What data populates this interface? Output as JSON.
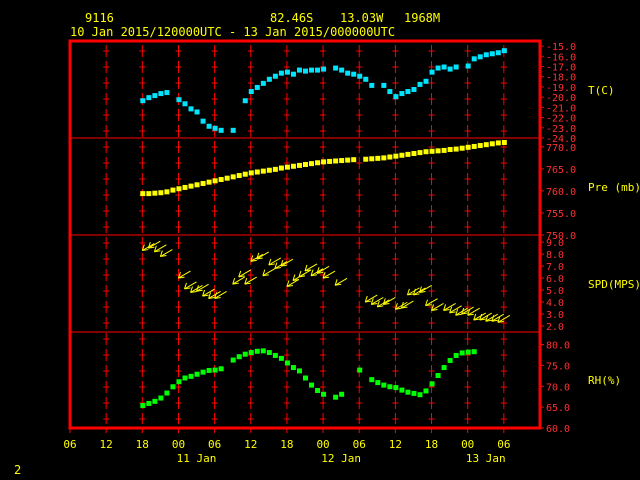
{
  "header": {
    "station": "9116",
    "latitude": "82.46S",
    "longitude": "13.03W",
    "elevation": "1968M",
    "time_range": "10 Jan 2015/120000UTC - 13 Jan 2015/000000UTC"
  },
  "page_number": "2",
  "colors": {
    "frame": "#ff0000",
    "gridline": "#ff0000",
    "label": "#ffff00",
    "temperature": "#00e5ff",
    "pressure": "#ffff00",
    "wind": "#ffff00",
    "humidity": "#00ff00"
  },
  "chart_data": [
    {
      "type": "scatter",
      "panel": "temperature",
      "ylabel": "T(C)",
      "ylim": [
        -24,
        -14.5
      ],
      "yticks": [
        "-15.0",
        "-16.0",
        "-17.0",
        "-18.0",
        "-19.0",
        "-20.0",
        "-21.0",
        "-22.0",
        "-23.0",
        "-24.0"
      ],
      "x_hours": [
        12,
        13,
        14,
        15,
        16,
        17,
        18,
        19,
        20,
        21,
        22,
        23,
        24,
        25,
        26,
        27,
        28,
        29,
        30,
        31,
        32,
        33,
        34,
        35,
        36,
        37,
        38,
        39,
        40,
        41,
        42,
        43,
        44,
        45,
        46,
        47,
        48,
        49,
        50,
        51,
        52,
        53,
        54,
        55,
        56,
        57,
        58,
        59,
        60,
        61,
        62,
        63,
        64,
        65,
        66,
        67,
        68,
        69,
        70,
        71,
        72
      ],
      "values": [
        -20.3,
        -20.0,
        -19.8,
        -19.6,
        -19.5,
        null,
        -20.2,
        -20.6,
        -21.1,
        -21.4,
        -22.3,
        -22.8,
        -23.0,
        -23.2,
        null,
        -23.2,
        null,
        -20.3,
        -19.4,
        -19.0,
        -18.6,
        -18.2,
        -17.9,
        -17.6,
        -17.5,
        -17.7,
        -17.3,
        -17.4,
        -17.3,
        -17.3,
        -17.2,
        null,
        -17.1,
        -17.3,
        -17.6,
        -17.7,
        -17.9,
        -18.2,
        -18.8,
        null,
        -18.8,
        -19.4,
        -19.9,
        -19.6,
        -19.4,
        -19.2,
        -18.7,
        -18.4,
        -17.5,
        -17.1,
        -17.0,
        -17.2,
        -17.0,
        null,
        -16.9,
        -16.2,
        -16.0,
        -15.8,
        -15.7,
        -15.6,
        -15.4
      ]
    },
    {
      "type": "scatter",
      "panel": "pressure",
      "ylabel": "Pre (mb)",
      "ylim": [
        750,
        772
      ],
      "yticks": [
        "770.0",
        "765.0",
        "760.0",
        "755.0",
        "750.0"
      ],
      "x_hours": [
        12,
        13,
        14,
        15,
        16,
        17,
        18,
        19,
        20,
        21,
        22,
        23,
        24,
        25,
        26,
        27,
        28,
        29,
        30,
        31,
        32,
        33,
        34,
        35,
        36,
        37,
        38,
        39,
        40,
        41,
        42,
        43,
        44,
        45,
        46,
        47,
        48,
        49,
        50,
        51,
        52,
        53,
        54,
        55,
        56,
        57,
        58,
        59,
        60,
        61,
        62,
        63,
        64,
        65,
        66,
        67,
        68,
        69,
        70,
        71,
        72
      ],
      "values": [
        759.5,
        759.5,
        759.6,
        759.7,
        759.9,
        760.3,
        760.6,
        760.9,
        761.2,
        761.5,
        761.8,
        762.1,
        762.4,
        762.7,
        763.0,
        763.3,
        763.6,
        763.9,
        764.2,
        764.4,
        764.6,
        764.8,
        765.0,
        765.3,
        765.5,
        765.7,
        765.9,
        766.1,
        766.3,
        766.5,
        766.7,
        766.8,
        766.9,
        767.0,
        767.1,
        767.2,
        null,
        767.3,
        767.4,
        767.5,
        767.6,
        767.8,
        768.0,
        768.2,
        768.4,
        768.6,
        768.8,
        769.0,
        769.1,
        769.2,
        769.3,
        769.5,
        769.6,
        769.8,
        770.0,
        770.2,
        770.4,
        770.6,
        770.8,
        771.0,
        771.1
      ]
    },
    {
      "type": "scatter",
      "panel": "wind_speed",
      "ylabel": "SPD(MPS)",
      "ylim": [
        1.5,
        9.6
      ],
      "yticks": [
        "9.0",
        "8.0",
        "7.0",
        "6.0",
        "5.0",
        "4.0",
        "3.0",
        "2.0"
      ],
      "x_hours": [
        12,
        13,
        14,
        15,
        16,
        17,
        18,
        19,
        20,
        21,
        22,
        23,
        24,
        25,
        26,
        27,
        28,
        29,
        30,
        31,
        32,
        33,
        34,
        35,
        36,
        37,
        38,
        39,
        40,
        41,
        42,
        43,
        44,
        45,
        46,
        47,
        48,
        49,
        50,
        51,
        52,
        53,
        54,
        55,
        56,
        57,
        58,
        59,
        60,
        61,
        62,
        63,
        64,
        65,
        66,
        67,
        68,
        69,
        70,
        71,
        72
      ],
      "values": [
        8.3,
        8.5,
        8.2,
        7.8,
        null,
        null,
        6.0,
        5.1,
        4.8,
        4.9,
        4.5,
        4.3,
        4.3,
        null,
        null,
        5.5,
        6.1,
        5.5,
        7.4,
        7.6,
        6.2,
        7.1,
        6.8,
        7.0,
        5.3,
        5.8,
        6.1,
        6.6,
        6.2,
        6.4,
        6.0,
        null,
        5.4,
        null,
        null,
        null,
        null,
        4.0,
        3.8,
        3.6,
        3.8,
        null,
        3.4,
        3.5,
        4.6,
        4.6,
        4.8,
        3.7,
        3.3,
        null,
        3.3,
        3.1,
        2.9,
        3.0,
        2.9,
        2.5,
        2.5,
        2.4,
        2.4,
        2.3,
        null
      ],
      "marker": "wind-barb"
    },
    {
      "type": "scatter",
      "panel": "humidity",
      "ylabel": "RH(%)",
      "ylim": [
        60,
        83
      ],
      "yticks": [
        "80.0",
        "75.0",
        "70.0",
        "65.0",
        "60.0"
      ],
      "x_hours": [
        12,
        13,
        14,
        15,
        16,
        17,
        18,
        19,
        20,
        21,
        22,
        23,
        24,
        25,
        26,
        27,
        28,
        29,
        30,
        31,
        32,
        33,
        34,
        35,
        36,
        37,
        38,
        39,
        40,
        41,
        42,
        43,
        44,
        45,
        46,
        47,
        48,
        49,
        50,
        51,
        52,
        53,
        54,
        55,
        56,
        57,
        58,
        59,
        60,
        61,
        62,
        63,
        64,
        65,
        66,
        67,
        68,
        69,
        70,
        71,
        72
      ],
      "values": [
        65.5,
        66.0,
        66.5,
        67.3,
        68.5,
        70.0,
        71.2,
        72.1,
        72.5,
        73.0,
        73.5,
        73.9,
        74.0,
        74.3,
        null,
        76.4,
        77.2,
        77.8,
        78.2,
        78.5,
        78.6,
        78.2,
        77.5,
        76.8,
        75.7,
        74.6,
        73.8,
        72.1,
        70.4,
        69.1,
        68.2,
        null,
        67.5,
        68.2,
        null,
        null,
        74.0,
        null,
        71.7,
        71.0,
        70.4,
        70.0,
        69.8,
        69.2,
        68.7,
        68.4,
        68.1,
        69.0,
        70.7,
        72.7,
        74.6,
        76.3,
        77.5,
        78.1,
        78.3,
        78.4,
        null,
        null,
        null,
        null,
        null
      ]
    }
  ],
  "x_axis": {
    "tick_labels": [
      "06",
      "12",
      "18",
      "00",
      "06",
      "12",
      "18",
      "00",
      "06",
      "12",
      "18",
      "00",
      "06"
    ],
    "day_labels": [
      "11 Jan",
      "12 Jan",
      "13 Jan"
    ]
  }
}
